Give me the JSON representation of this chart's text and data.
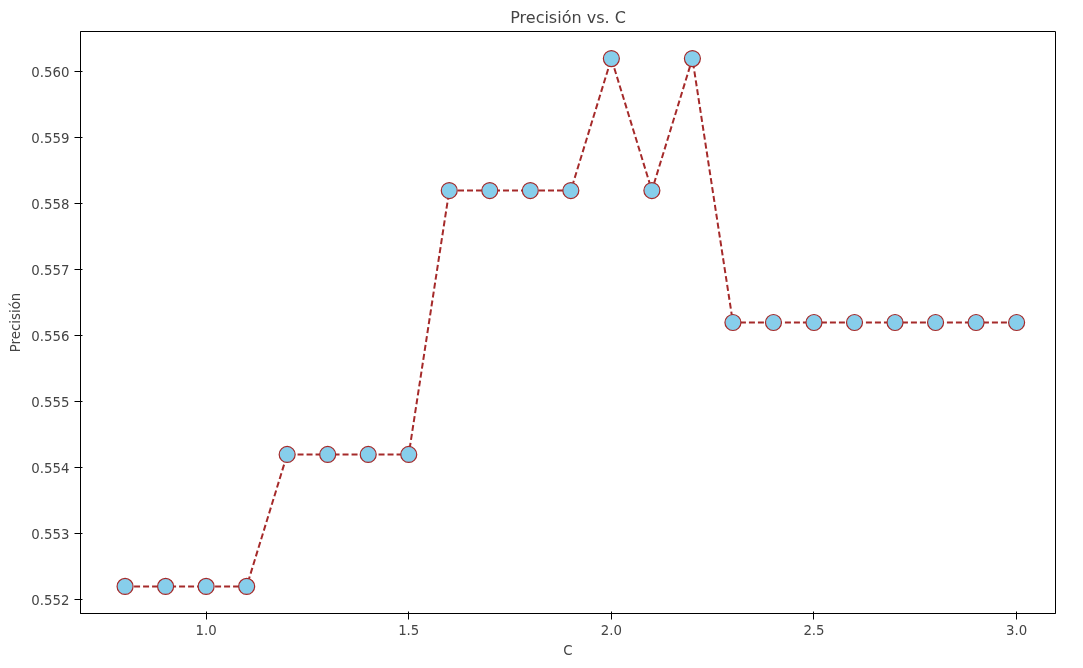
{
  "chart_data": {
    "type": "line",
    "title": "Precisión vs. C",
    "xlabel": "C",
    "ylabel": "Precisión",
    "x": [
      0.8,
      0.9,
      1.0,
      1.1,
      1.2,
      1.3,
      1.4,
      1.5,
      1.6,
      1.7,
      1.8,
      1.9,
      2.0,
      2.1,
      2.2,
      2.3,
      2.4,
      2.5,
      2.6,
      2.7,
      2.8,
      2.9,
      3.0
    ],
    "series": [
      {
        "color": "#a52a2a",
        "colors": [
          "#87ceeb",
          "#87ceeb",
          "#87ceeb",
          "#87ceeb",
          "#87ceeb",
          "#87ceeb",
          "#87ceeb",
          "#87ceeb",
          "#87ceeb",
          "#87ceeb",
          "#87ceeb",
          "#87ceeb",
          "#87ceeb",
          "#87ceeb",
          "#87ceeb",
          "#87ceeb",
          "#87ceeb",
          "#87ceeb",
          "#87ceeb",
          "#87ceeb",
          "#87ceeb",
          "#87ceeb",
          "#87ceeb"
        ],
        "values": [
          0.5522,
          0.5522,
          0.5522,
          0.5522,
          0.5542,
          0.5542,
          0.5542,
          0.5542,
          0.5582,
          0.5582,
          0.5582,
          0.5582,
          0.5602,
          0.5582,
          0.5602,
          0.5562,
          0.5562,
          0.5562,
          0.5562,
          0.5562,
          0.5562,
          0.5562,
          0.5562
        ]
      }
    ],
    "xlim": [
      0.69,
      3.096
    ],
    "ylim": [
      0.55179,
      0.56061
    ],
    "xticks": [
      {
        "value": 1,
        "label": "1.0"
      },
      1.5,
      {
        "value": 2,
        "label": "2.0"
      },
      2.5,
      {
        "value": 3,
        "label": "3.0"
      }
    ],
    "yticks": [
      0.552,
      0.553,
      0.554,
      0.555,
      0.556,
      0.557,
      0.558,
      0.559,
      {
        "value": 0.56,
        "label": "0.560"
      }
    ],
    "marker": "circle",
    "line_style": "dashed",
    "grid": false
  }
}
